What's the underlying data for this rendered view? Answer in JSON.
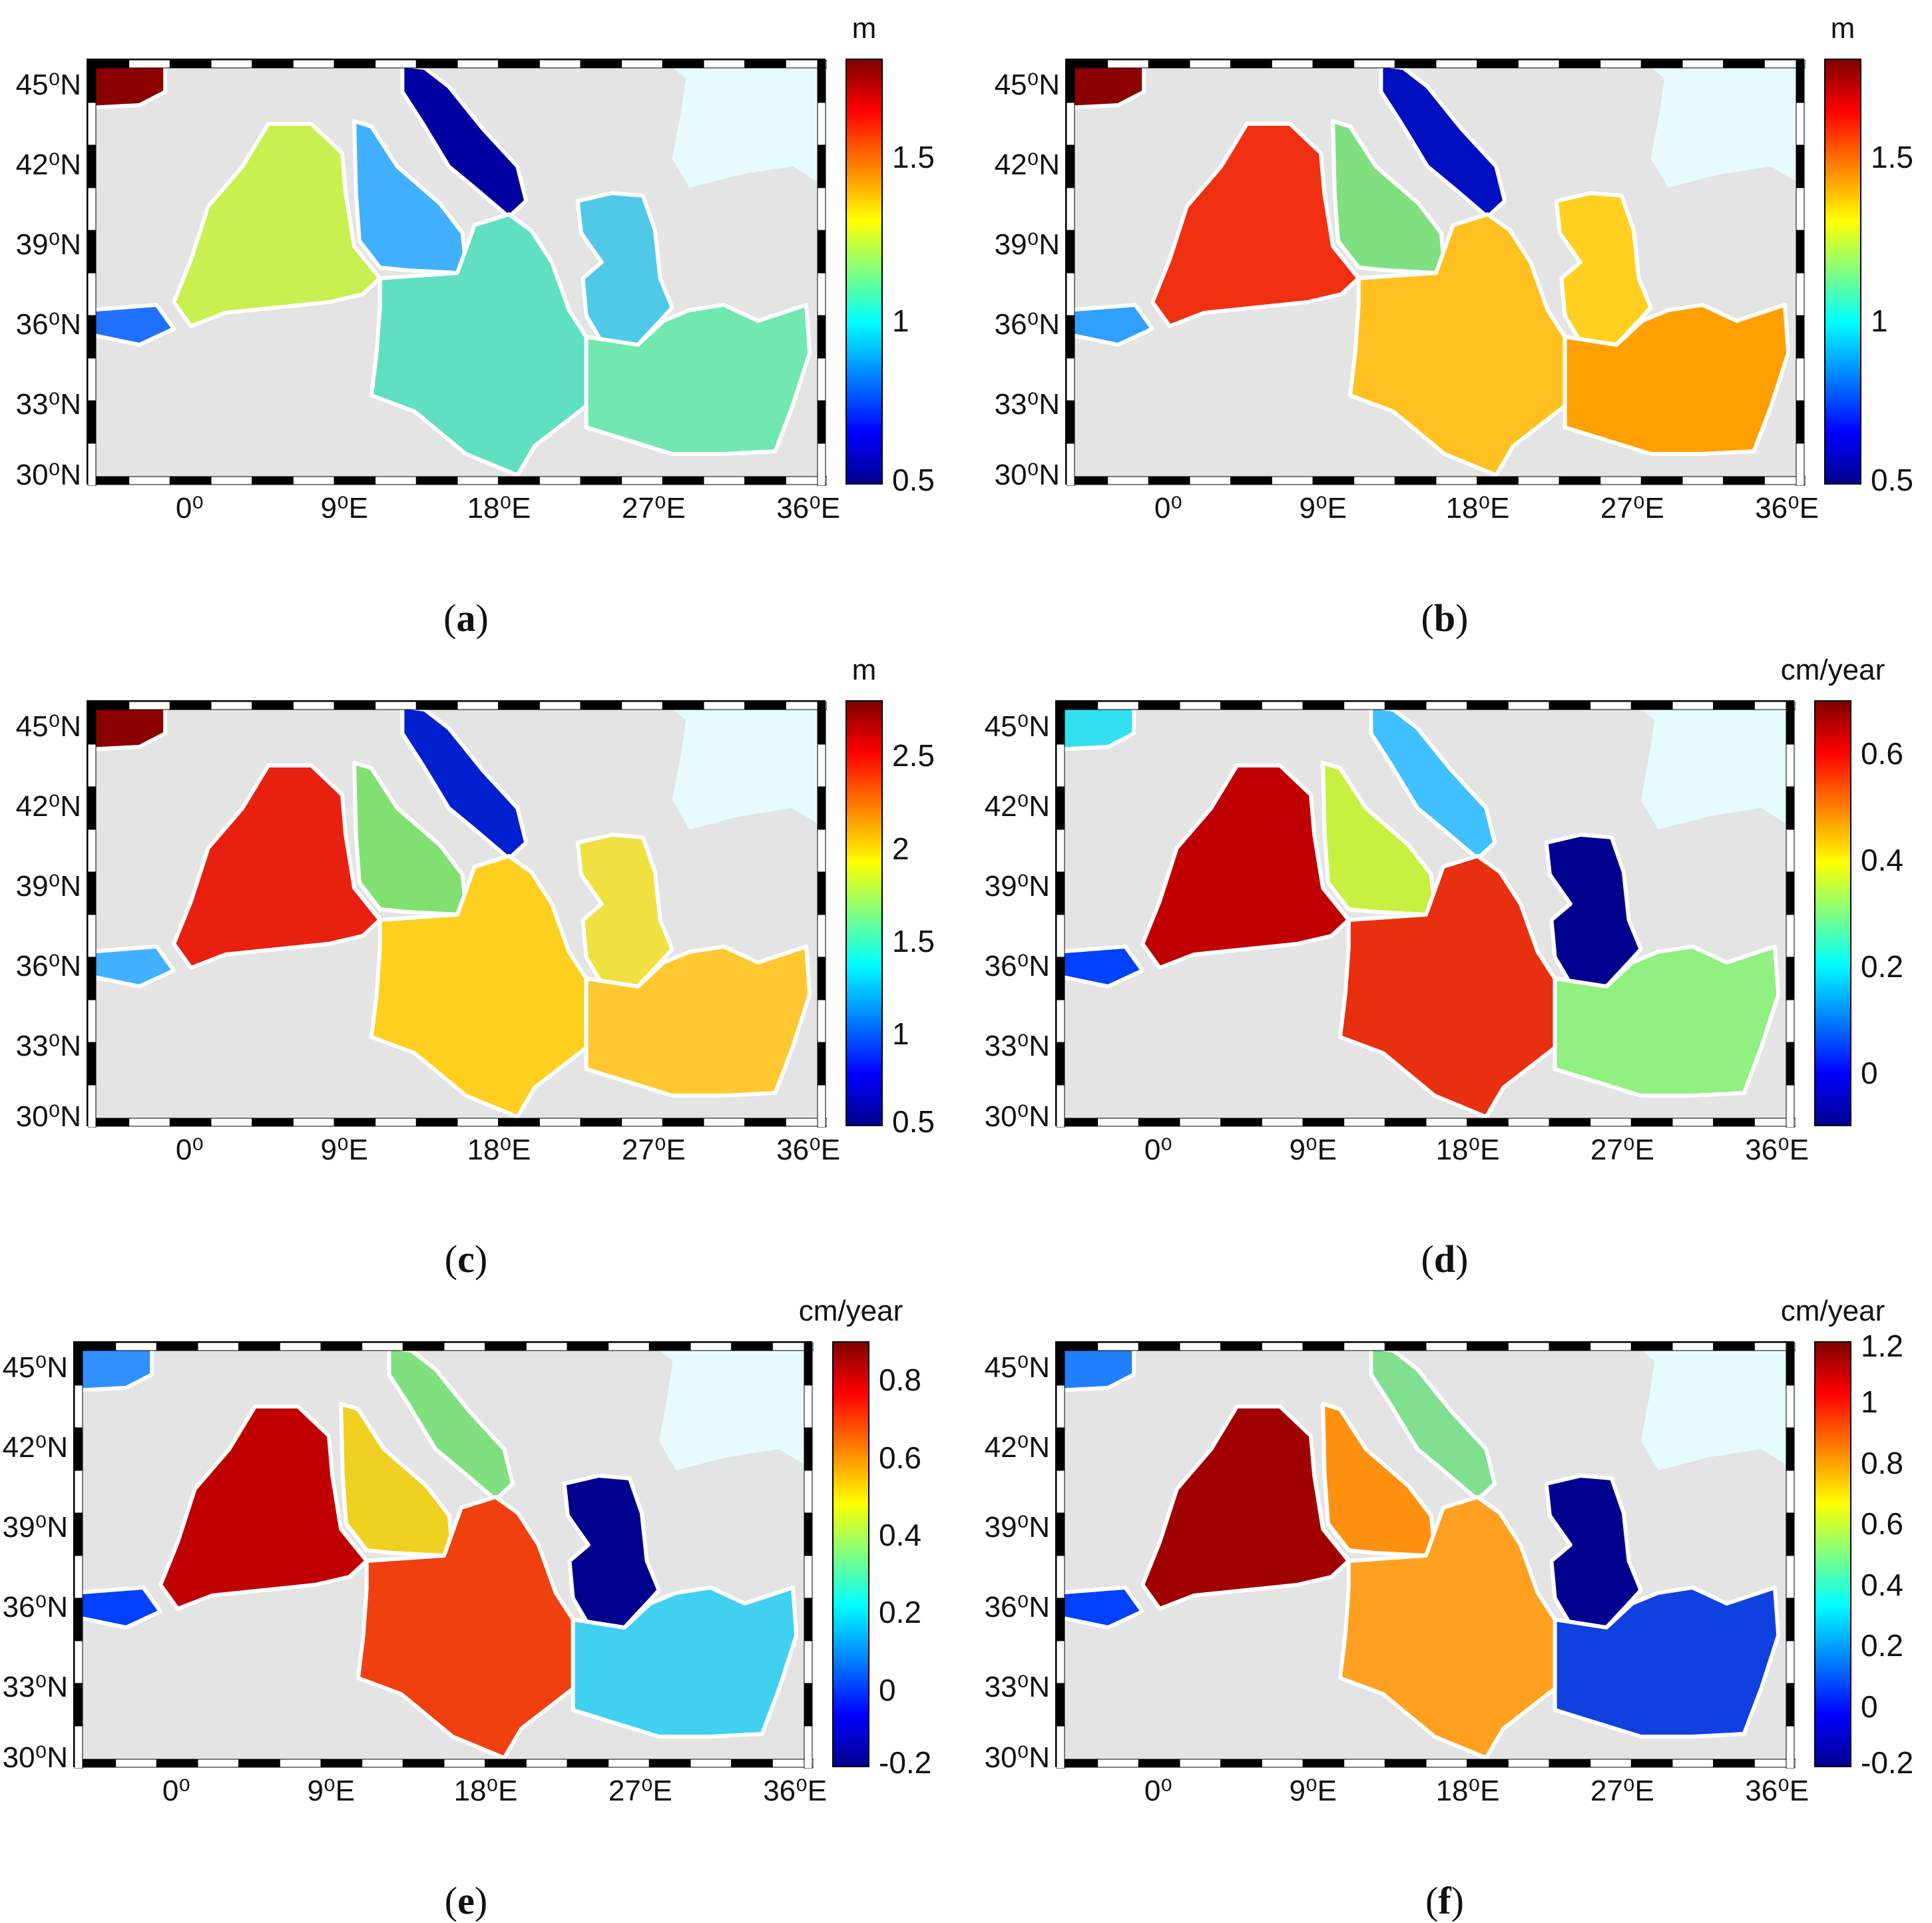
{
  "lat_labels": [
    "45⁰N",
    "42⁰N",
    "39⁰N",
    "36⁰N",
    "33⁰N",
    "30⁰N"
  ],
  "lon_labels": [
    "0⁰",
    "9⁰E",
    "18⁰E",
    "27⁰E",
    "36⁰E"
  ],
  "lat_values": [
    45,
    42,
    39,
    36,
    33,
    30
  ],
  "lon_values": [
    0,
    9,
    18,
    27,
    36
  ],
  "extent": {
    "lon_min": -6,
    "lon_max": 37,
    "lat_min": 30,
    "lat_max": 46
  },
  "panels": [
    {
      "id": "a",
      "caption": "a",
      "unit": "m",
      "ticks": [
        "1.5",
        "1",
        "0.5"
      ],
      "tick_values": [
        1.5,
        1,
        0.5
      ],
      "range": [
        0.5,
        1.8
      ],
      "colors": {
        "western": "#c8f050",
        "tyrrhenian": "#40b0ff",
        "adriatic": "#0000a0",
        "ionian": "#60e0c0",
        "levantine": "#70e8b0",
        "aegean": "#50c8e8",
        "alboran": "#2070ff",
        "biscay": "#8b0000"
      }
    },
    {
      "id": "b",
      "caption": "b",
      "unit": "m",
      "ticks": [
        "1.5",
        "1",
        "0.5"
      ],
      "tick_values": [
        1.5,
        1,
        0.5
      ],
      "range": [
        0.5,
        1.8
      ],
      "colors": {
        "western": "#f03010",
        "tyrrhenian": "#80e080",
        "adriatic": "#0010c0",
        "ionian": "#ffc020",
        "levantine": "#ffa000",
        "aegean": "#ffd020",
        "alboran": "#30a0ff",
        "biscay": "#8b0000"
      }
    },
    {
      "id": "c",
      "caption": "c",
      "unit": "m",
      "ticks": [
        "2.5",
        "2",
        "1.5",
        "1",
        "0.5"
      ],
      "tick_values": [
        2.5,
        2,
        1.5,
        1,
        0.5
      ],
      "range": [
        0.5,
        2.8
      ],
      "colors": {
        "western": "#e82010",
        "tyrrhenian": "#80e070",
        "adriatic": "#0020d0",
        "ionian": "#ffd020",
        "levantine": "#ffc830",
        "aegean": "#f0e040",
        "alboran": "#40b0ff",
        "biscay": "#8b0000"
      }
    },
    {
      "id": "d",
      "caption": "d",
      "unit": "cm/year",
      "ticks": [
        "0.6",
        "0.4",
        "0.2",
        "0"
      ],
      "tick_values": [
        0.6,
        0.4,
        0.2,
        0
      ],
      "range": [
        -0.1,
        0.7
      ],
      "colors": {
        "western": "#c00000",
        "tyrrhenian": "#c8f040",
        "adriatic": "#40c0ff",
        "ionian": "#e83010",
        "levantine": "#90f080",
        "aegean": "#00008f",
        "alboran": "#0040ff",
        "biscay": "#30e0f0"
      }
    },
    {
      "id": "e",
      "caption": "e",
      "unit": "cm/year",
      "ticks": [
        "0.8",
        "0.6",
        "0.4",
        "0.2",
        "0",
        "-0.2"
      ],
      "tick_values": [
        0.8,
        0.6,
        0.4,
        0.2,
        0,
        -0.2
      ],
      "range": [
        -0.2,
        0.9
      ],
      "colors": {
        "western": "#c00000",
        "tyrrhenian": "#f0d020",
        "adriatic": "#80e080",
        "ionian": "#f04010",
        "levantine": "#40d0f0",
        "aegean": "#00008f",
        "alboran": "#0040ff",
        "biscay": "#3090ff"
      }
    },
    {
      "id": "f",
      "caption": "f",
      "unit": "cm/year",
      "ticks": [
        "1.2",
        "1",
        "0.8",
        "0.6",
        "0.4",
        "0.2",
        "0",
        "-0.2"
      ],
      "tick_values": [
        1.2,
        1,
        0.8,
        0.6,
        0.4,
        0.2,
        0,
        -0.2
      ],
      "range": [
        -0.2,
        1.2
      ],
      "colors": {
        "western": "#a00000",
        "tyrrhenian": "#ff9010",
        "adriatic": "#80e090",
        "ionian": "#ffa020",
        "levantine": "#1040e0",
        "aegean": "#00008f",
        "alboran": "#0040ff",
        "biscay": "#2080ff"
      }
    }
  ]
}
